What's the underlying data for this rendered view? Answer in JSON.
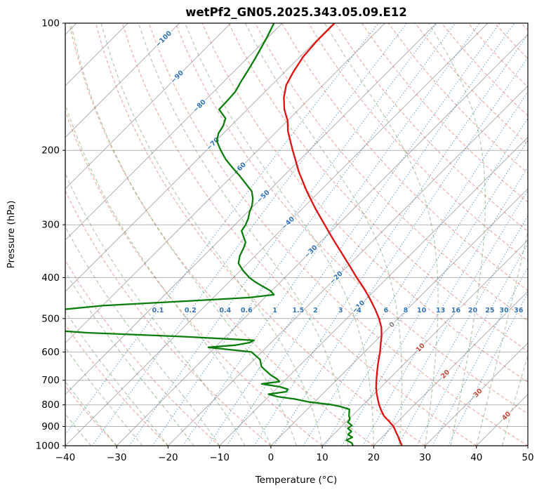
{
  "title": "wetPf2_GN05.2025.343.05.09.E12",
  "chart_data": {
    "type": "line",
    "subtype": "skew-t-log-p",
    "title": "wetPf2_GN05.2025.343.05.09.E12",
    "xlabel": "Temperature (°C)",
    "ylabel": "Pressure (hPa)",
    "xlim": [
      -40,
      50
    ],
    "pressure_lim": [
      1000,
      100
    ],
    "skew_c_per_decade": 82.2,
    "x_ticks": [
      -40,
      -30,
      -20,
      -10,
      0,
      10,
      20,
      30,
      40,
      50
    ],
    "pressure_ticks": [
      100,
      200,
      300,
      400,
      500,
      600,
      700,
      800,
      900,
      1000
    ],
    "grid": true,
    "isotherms": {
      "min": -120,
      "max": 50,
      "step": 10,
      "labels": [
        {
          "t": -100,
          "p": 109
        },
        {
          "t": -90,
          "p": 134
        },
        {
          "t": -80,
          "p": 157
        },
        {
          "t": -70,
          "p": 193
        },
        {
          "t": -60,
          "p": 221
        },
        {
          "t": -50,
          "p": 257
        },
        {
          "t": -40,
          "p": 297
        },
        {
          "t": -30,
          "p": 347
        },
        {
          "t": -20,
          "p": 400
        },
        {
          "t": -10,
          "p": 469
        },
        {
          "t": 0,
          "p": 517
        },
        {
          "t": 10,
          "p": 586
        },
        {
          "t": 20,
          "p": 677
        },
        {
          "t": 30,
          "p": 750
        },
        {
          "t": 40,
          "p": 850
        }
      ]
    },
    "dry_adiabats": {
      "theta_min": -40,
      "theta_max": 200,
      "step": 10
    },
    "moist_adiabats": {
      "t0_min": -40,
      "t0_max": 45,
      "step": 5
    },
    "mixing_ratio_lines": {
      "values": [
        0.1,
        0.2,
        0.4,
        0.6,
        1,
        1.5,
        2,
        3,
        4,
        6,
        8,
        10,
        13,
        16,
        20,
        25,
        30,
        36
      ],
      "label_pressure": 478
    },
    "series": [
      {
        "name": "temperature",
        "color": "#e01010",
        "points": [
          [
            1000,
            25.5
          ],
          [
            975,
            24.2
          ],
          [
            950,
            22.9
          ],
          [
            925,
            21.5
          ],
          [
            900,
            20.1
          ],
          [
            875,
            18.2
          ],
          [
            850,
            16.2
          ],
          [
            825,
            14.6
          ],
          [
            800,
            13.1
          ],
          [
            775,
            11.7
          ],
          [
            750,
            10.3
          ],
          [
            725,
            9.0
          ],
          [
            700,
            7.8
          ],
          [
            675,
            6.6
          ],
          [
            650,
            5.4
          ],
          [
            625,
            4.2
          ],
          [
            600,
            3.0
          ],
          [
            575,
            1.6
          ],
          [
            550,
            0.2
          ],
          [
            525,
            -1.5
          ],
          [
            500,
            -3.7
          ],
          [
            475,
            -6.3
          ],
          [
            450,
            -9.2
          ],
          [
            425,
            -12.4
          ],
          [
            400,
            -16.0
          ],
          [
            375,
            -19.7
          ],
          [
            350,
            -23.7
          ],
          [
            325,
            -28.0
          ],
          [
            300,
            -32.5
          ],
          [
            275,
            -37.4
          ],
          [
            250,
            -42.5
          ],
          [
            225,
            -47.8
          ],
          [
            200,
            -53.2
          ],
          [
            190,
            -55.5
          ],
          [
            180,
            -57.9
          ],
          [
            170,
            -60.0
          ],
          [
            160,
            -62.8
          ],
          [
            150,
            -65.2
          ],
          [
            140,
            -67.2
          ],
          [
            130,
            -68.4
          ],
          [
            120,
            -69.4
          ],
          [
            110,
            -69.8
          ],
          [
            100,
            -69.8
          ]
        ]
      },
      {
        "name": "dewpoint",
        "color": "#0a7d0a",
        "points": [
          [
            1000,
            16.0
          ],
          [
            985,
            15.2
          ],
          [
            970,
            13.6
          ],
          [
            955,
            14.2
          ],
          [
            940,
            12.8
          ],
          [
            925,
            12.9
          ],
          [
            910,
            11.6
          ],
          [
            895,
            11.8
          ],
          [
            880,
            10.4
          ],
          [
            865,
            10.2
          ],
          [
            850,
            9.4
          ],
          [
            835,
            8.8
          ],
          [
            820,
            8.2
          ],
          [
            808,
            6.0
          ],
          [
            800,
            4.0
          ],
          [
            788,
            -1.0
          ],
          [
            775,
            -4.5
          ],
          [
            765,
            -8.3
          ],
          [
            755,
            -10.5
          ],
          [
            745,
            -7.5
          ],
          [
            735,
            -7.7
          ],
          [
            725,
            -9.8
          ],
          [
            714,
            -13.8
          ],
          [
            705,
            -10.8
          ],
          [
            695,
            -11.8
          ],
          [
            680,
            -13.8
          ],
          [
            665,
            -15.5
          ],
          [
            650,
            -17.2
          ],
          [
            638,
            -18.0
          ],
          [
            625,
            -18.9
          ],
          [
            612,
            -20.5
          ],
          [
            600,
            -22.0
          ],
          [
            592,
            -27.0
          ],
          [
            585,
            -31.3
          ],
          [
            578,
            -26.5
          ],
          [
            570,
            -24.2
          ],
          [
            563,
            -23.8
          ],
          [
            552,
            -38.0
          ],
          [
            540,
            -58.0
          ],
          [
            528,
            -70.0
          ],
          [
            515,
            -76.0
          ],
          [
            500,
            -77.0
          ],
          [
            488,
            -71.0
          ],
          [
            476,
            -67.0
          ],
          [
            466,
            -60.0
          ],
          [
            455,
            -45.0
          ],
          [
            446,
            -33.0
          ],
          [
            439,
            -28.8
          ],
          [
            430,
            -30.2
          ],
          [
            420,
            -32.5
          ],
          [
            410,
            -34.8
          ],
          [
            400,
            -36.9
          ],
          [
            385,
            -39.5
          ],
          [
            370,
            -41.8
          ],
          [
            355,
            -43.0
          ],
          [
            340,
            -43.8
          ],
          [
            330,
            -44.5
          ],
          [
            320,
            -46.0
          ],
          [
            310,
            -47.5
          ],
          [
            300,
            -47.9
          ],
          [
            290,
            -48.6
          ],
          [
            280,
            -49.6
          ],
          [
            270,
            -50.4
          ],
          [
            260,
            -51.6
          ],
          [
            250,
            -53.2
          ],
          [
            240,
            -55.8
          ],
          [
            230,
            -58.5
          ],
          [
            220,
            -61.5
          ],
          [
            210,
            -64.5
          ],
          [
            200,
            -67.2
          ],
          [
            190,
            -69.8
          ],
          [
            182,
            -71.0
          ],
          [
            175,
            -71.5
          ],
          [
            168,
            -72.5
          ],
          [
            160,
            -75.5
          ],
          [
            152,
            -75.6
          ],
          [
            145,
            -75.8
          ],
          [
            138,
            -76.6
          ],
          [
            130,
            -77.4
          ],
          [
            122,
            -78.3
          ],
          [
            115,
            -79.2
          ],
          [
            108,
            -80.2
          ],
          [
            100,
            -81.6
          ]
        ]
      }
    ],
    "colors": {
      "grid": "#b3b3b3",
      "isotherm": "#9c9c9c",
      "mixing": "#3f87c2",
      "mixing_label": "#3273b8",
      "dry_adiabat": "rgba(217,95,75,0.5)",
      "moist_adiabat": "rgba(70,140,60,0.4)",
      "label_neg": "#3273b8",
      "label_zero": "#808080",
      "label_pos": "#c04a3a",
      "frame": "#000000"
    }
  }
}
